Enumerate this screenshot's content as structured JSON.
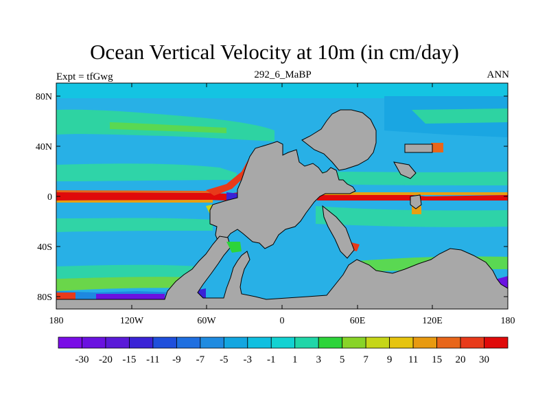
{
  "title": "Ocean Vertical Velocity at 10m (in cm/day)",
  "left_label": "Expt = tfGwg",
  "center_label": "292_6_MaBP",
  "right_label": "ANN",
  "y_ticks": [
    "80N",
    "40N",
    "0",
    "40S",
    "80S"
  ],
  "x_ticks": [
    "180",
    "120W",
    "60W",
    "0",
    "60E",
    "120E",
    "180"
  ],
  "colorbar": {
    "labels": [
      "-30",
      "-20",
      "-15",
      "-11",
      "-9",
      "-7",
      "-5",
      "-3",
      "-1",
      "1",
      "3",
      "5",
      "7",
      "9",
      "11",
      "15",
      "20",
      "30"
    ],
    "colors": [
      "#7a0de6",
      "#6a12e0",
      "#5a1ad8",
      "#3a23d6",
      "#1f4fdc",
      "#1f6fe0",
      "#1f8be0",
      "#13a6e0",
      "#10bfe0",
      "#12d2d2",
      "#20d6a8",
      "#2dd43a",
      "#88d428",
      "#c6d618",
      "#e6c40e",
      "#e89a10",
      "#e8661a",
      "#e83a1a",
      "#e00a0a"
    ]
  },
  "palette": {
    "land": "#a8a8a8",
    "ocean": "#28b0e6",
    "upwell": "#e81818",
    "downwell": "#6a1ae0"
  }
}
